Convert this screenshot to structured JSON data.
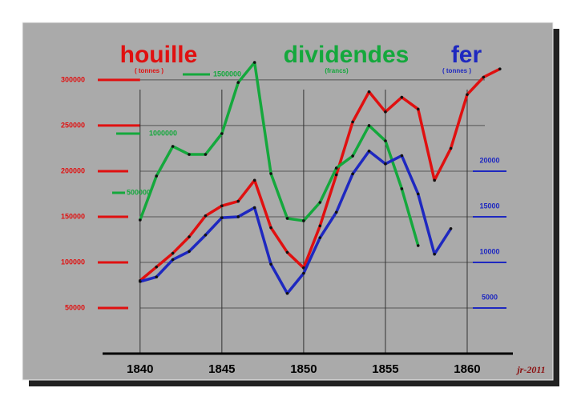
{
  "chart_data": {
    "type": "line",
    "x": [
      1840,
      1841,
      1842,
      1843,
      1844,
      1845,
      1846,
      1847,
      1848,
      1849,
      1850,
      1851,
      1852,
      1853,
      1854,
      1855,
      1856,
      1857,
      1858,
      1859,
      1860,
      1861,
      1862
    ],
    "xlim": [
      1838,
      1862.5
    ],
    "xticks": [
      1840,
      1845,
      1850,
      1855,
      1860
    ],
    "ylim": [
      0,
      335000
    ],
    "yticks": [
      50000,
      100000,
      150000,
      200000,
      250000,
      300000
    ],
    "y2lim": [
      -858000,
      1723000
    ],
    "y2ticks": [
      500000,
      1000000,
      1500000
    ],
    "y3lim": [
      0,
      33500
    ],
    "y3ticks": [
      5000,
      10000,
      15000,
      20000
    ],
    "grid": true,
    "series": [
      {
        "name": "houille",
        "unit": "( tonnes )",
        "color": "#e01010",
        "axis": "y",
        "values": [
          80000,
          95000,
          110000,
          128000,
          151000,
          162000,
          167000,
          190000,
          138000,
          111000,
          94000,
          140000,
          196000,
          254000,
          287000,
          265000,
          281000,
          268000,
          190000,
          225000,
          284000,
          303000,
          312000
        ]
      },
      {
        "name": "dividendes",
        "unit": "(francs)",
        "color": "#14a83c",
        "axis": "y2",
        "values": [
          270000,
          642000,
          892000,
          824000,
          824000,
          1000000,
          1432000,
          1601000,
          662000,
          284000,
          264000,
          419000,
          709000,
          811000,
          1068000,
          939000,
          534000,
          54000,
          null,
          null,
          null,
          null,
          null
        ]
      },
      {
        "name": "fer",
        "unit": "( tonnes )",
        "color": "#1e28c0",
        "axis": "y3",
        "values": [
          7900,
          8400,
          10300,
          11200,
          13000,
          14900,
          15000,
          16000,
          9800,
          6600,
          8800,
          12700,
          15500,
          19700,
          22200,
          20800,
          21700,
          17500,
          10900,
          13700,
          null,
          null,
          null
        ]
      }
    ],
    "annotation": "jr-2011"
  }
}
